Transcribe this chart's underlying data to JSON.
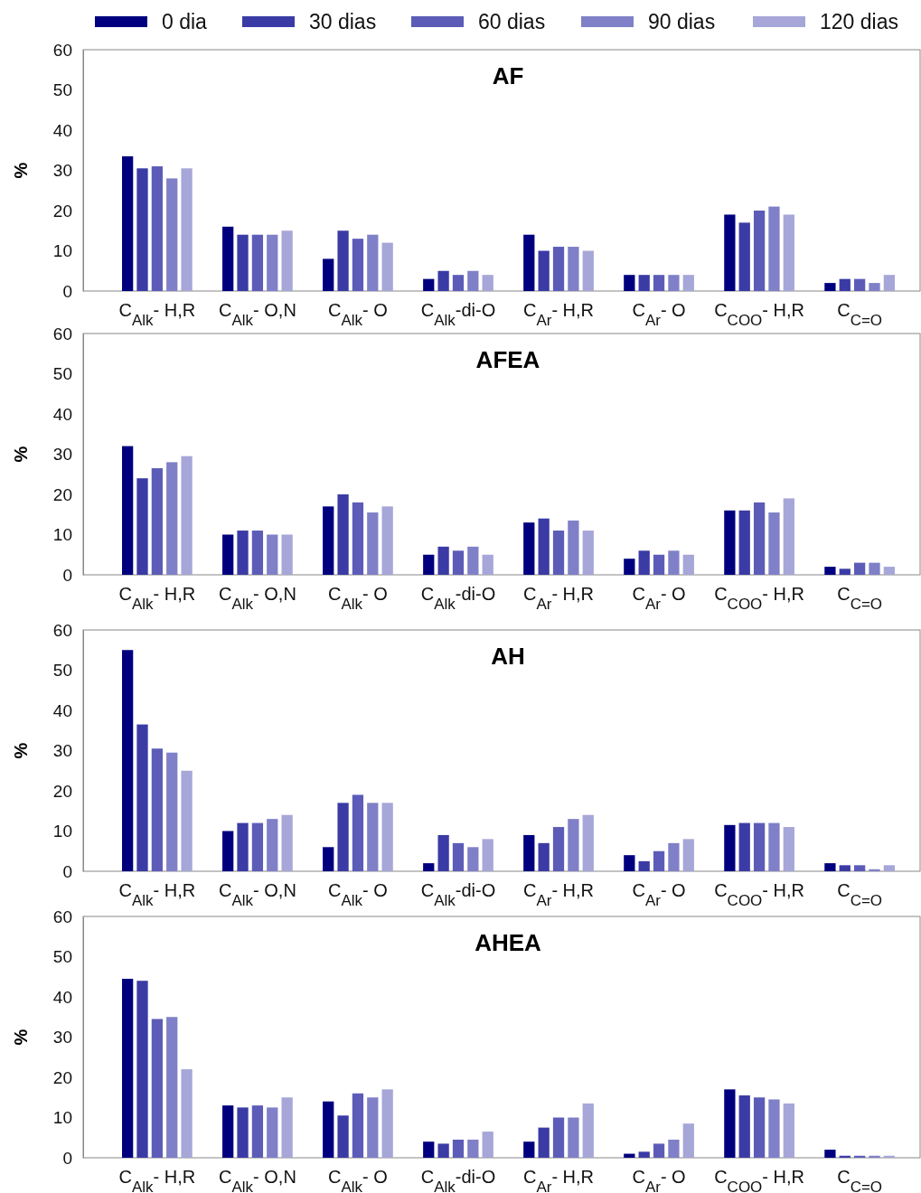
{
  "chart_data": [
    {
      "type": "bar",
      "title": "AF",
      "ylabel": "%",
      "legend": "top",
      "ylim": [
        0,
        60
      ],
      "yticks": [
        0,
        10,
        20,
        30,
        40,
        50,
        60
      ],
      "grid": false,
      "categories": [
        "C$_{Alk}$- H,R",
        "C$_{Alk}$- O,N",
        "C$_{Alk}$- O",
        "C$_{Alk}$-di-O",
        "C$_{Ar}$- H,R",
        "C$_{Ar}$- O",
        "C$_{COO}$- H,R",
        "C$_{C=O}$"
      ],
      "series": [
        {
          "name": "0 dia",
          "color": "#00007f",
          "values": [
            33.5,
            16,
            8,
            3,
            14,
            4,
            19,
            2
          ]
        },
        {
          "name": "30 dias",
          "color": "#3b3ba6",
          "values": [
            30.5,
            14,
            15,
            5,
            10,
            4,
            17,
            3
          ]
        },
        {
          "name": "60 dias",
          "color": "#5c5cb8",
          "values": [
            31,
            14,
            13,
            4,
            11,
            4,
            20,
            3
          ]
        },
        {
          "name": "90 dias",
          "color": "#8080c8",
          "values": [
            28,
            14,
            14,
            5,
            11,
            4,
            21,
            2
          ]
        },
        {
          "name": "120 dias",
          "color": "#a6a6d8",
          "values": [
            30.5,
            15,
            12,
            4,
            10,
            4,
            19,
            4
          ]
        }
      ]
    },
    {
      "type": "bar",
      "title": "AFEA",
      "ylabel": "%",
      "ylim": [
        0,
        60
      ],
      "yticks": [
        0,
        10,
        20,
        30,
        40,
        50,
        60
      ],
      "grid": false,
      "categories": [
        "C$_{Alk}$- H,R",
        "C$_{Alk}$- O,N",
        "C$_{Alk}$- O",
        "C$_{Alk}$-di-O",
        "C$_{Ar}$- H,R",
        "C$_{Ar}$- O",
        "C$_{COO}$- H,R",
        "C$_{C=O}$"
      ],
      "series": [
        {
          "color": "#00007f",
          "values": [
            32,
            10,
            17,
            5,
            13,
            4,
            16,
            2
          ]
        },
        {
          "color": "#3b3ba6",
          "values": [
            24,
            11,
            20,
            7,
            14,
            6,
            16,
            1.5
          ]
        },
        {
          "color": "#5c5cb8",
          "values": [
            26.5,
            11,
            18,
            6,
            11,
            5,
            18,
            3
          ]
        },
        {
          "color": "#8080c8",
          "values": [
            28,
            10,
            15.5,
            7,
            13.5,
            6,
            15.5,
            3
          ]
        },
        {
          "color": "#a6a6d8",
          "values": [
            29.5,
            10,
            17,
            5,
            11,
            5,
            19,
            2
          ]
        }
      ]
    },
    {
      "type": "bar",
      "title": "AH",
      "ylabel": "%",
      "ylim": [
        0,
        60
      ],
      "yticks": [
        0,
        10,
        20,
        30,
        40,
        50,
        60
      ],
      "grid": false,
      "categories": [
        "C$_{Alk}$- H,R",
        "C$_{Alk}$- O,N",
        "C$_{Alk}$- O",
        "C$_{Alk}$-di-O",
        "C$_{Ar}$- H,R",
        "C$_{Ar}$- O",
        "C$_{COO}$- H,R",
        "C$_{C=O}$"
      ],
      "series": [
        {
          "color": "#00007f",
          "values": [
            55,
            10,
            6,
            2,
            9,
            4,
            11.5,
            2
          ]
        },
        {
          "color": "#3b3ba6",
          "values": [
            36.5,
            12,
            17,
            9,
            7,
            2.5,
            12,
            1.5
          ]
        },
        {
          "color": "#5c5cb8",
          "values": [
            30.5,
            12,
            19,
            7,
            11,
            5,
            12,
            1.5
          ]
        },
        {
          "color": "#8080c8",
          "values": [
            29.5,
            13,
            17,
            6,
            13,
            7,
            12,
            0.5
          ]
        },
        {
          "color": "#a6a6d8",
          "values": [
            25,
            14,
            17,
            8,
            14,
            8,
            11,
            1.5
          ]
        }
      ]
    },
    {
      "type": "bar",
      "title": "AHEA",
      "ylabel": "%",
      "ylim": [
        0,
        60
      ],
      "yticks": [
        0,
        10,
        20,
        30,
        40,
        50,
        60
      ],
      "grid": false,
      "categories": [
        "C$_{Alk}$- H,R",
        "C$_{Alk}$- O,N",
        "C$_{Alk}$- O",
        "C$_{Alk}$-di-O",
        "C$_{Ar}$- H,R",
        "C$_{Ar}$- O",
        "C$_{COO}$- H,R",
        "C$_{C=O}$"
      ],
      "series": [
        {
          "color": "#00007f",
          "values": [
            44.5,
            13,
            14,
            4,
            4,
            1,
            17,
            2
          ]
        },
        {
          "color": "#3b3ba6",
          "values": [
            44,
            12.5,
            10.5,
            3.5,
            7.5,
            1.5,
            15.5,
            0.5
          ]
        },
        {
          "color": "#5c5cb8",
          "values": [
            34.5,
            13,
            16,
            4.5,
            10,
            3.5,
            15,
            0.5
          ]
        },
        {
          "color": "#8080c8",
          "values": [
            35,
            12.5,
            15,
            4.5,
            10,
            4.5,
            14.5,
            0.5
          ]
        },
        {
          "color": "#a6a6d8",
          "values": [
            22,
            15,
            17,
            6.5,
            13.5,
            8.5,
            13.5,
            0.5
          ]
        }
      ]
    }
  ]
}
